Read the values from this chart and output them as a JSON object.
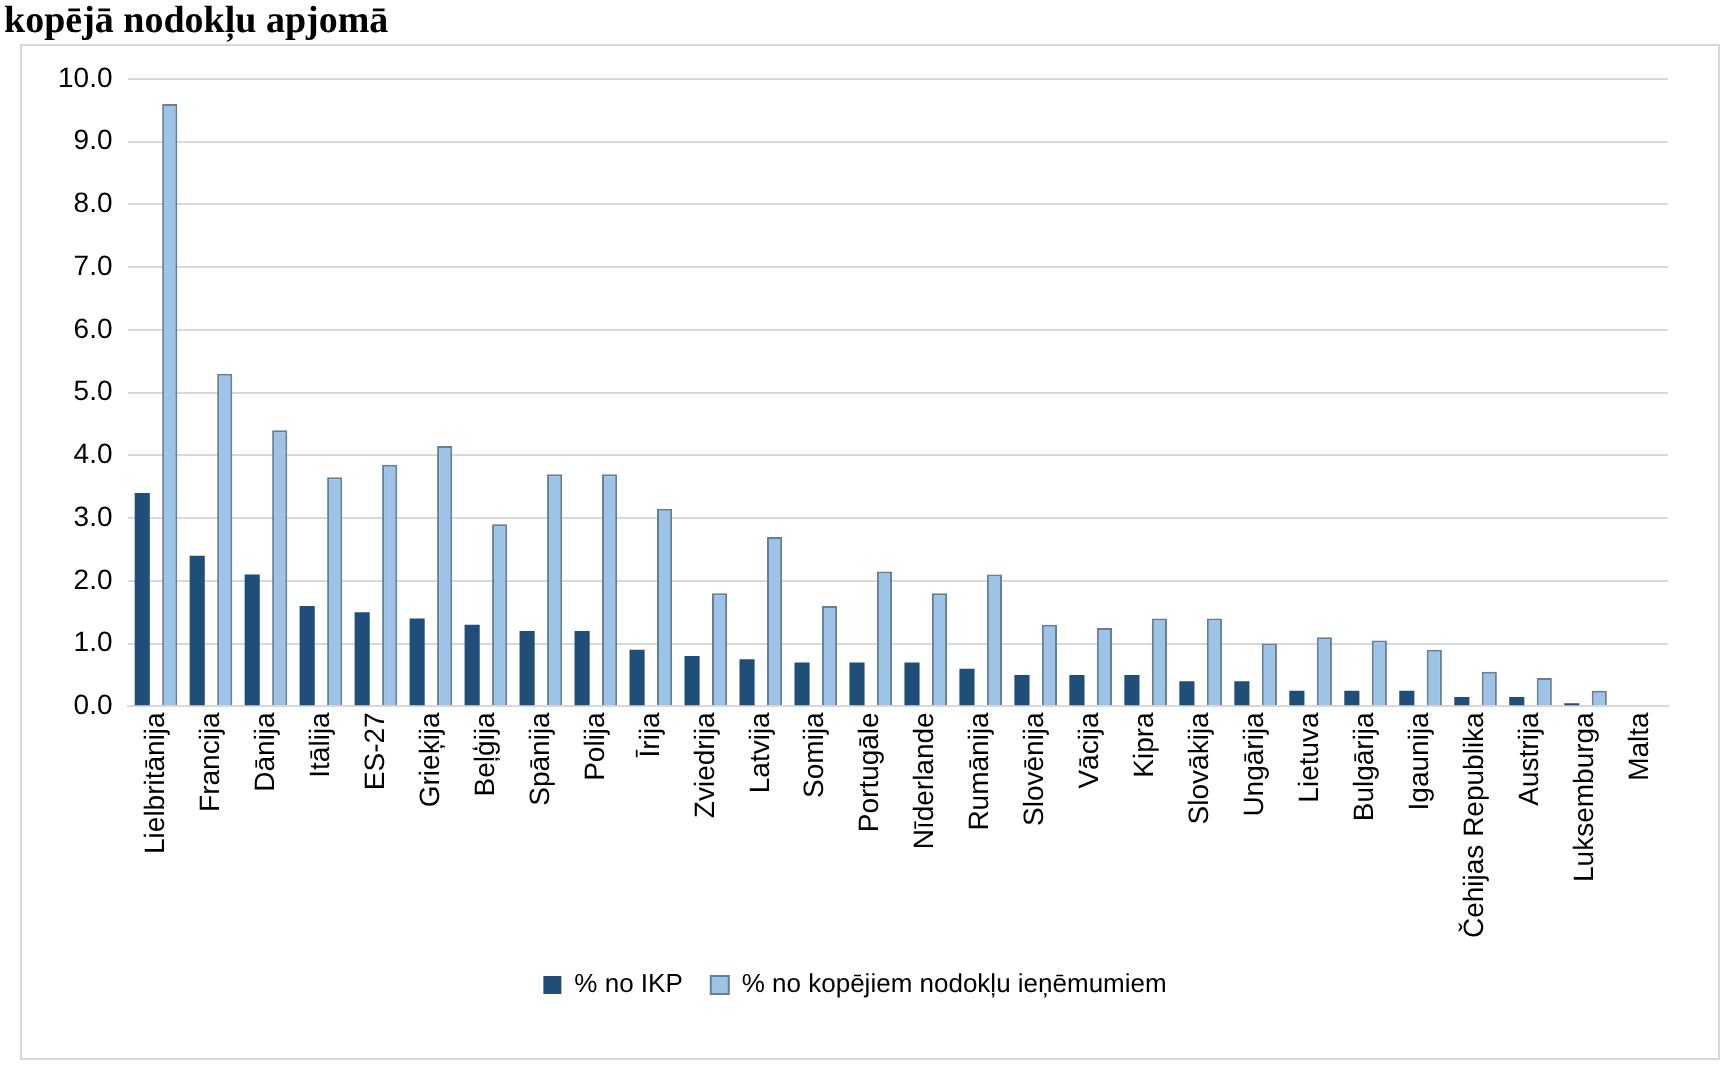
{
  "chart_data": {
    "type": "bar",
    "title": "kopējā nodokļu apjomā",
    "categories": [
      "Lielbritānija",
      "Francija",
      "Dānija",
      "Itālija",
      "ES-27",
      "Grieķija",
      "Beļģija",
      "Spānija",
      "Polija",
      "Īrija",
      "Zviedrija",
      "Latvija",
      "Somija",
      "Portugāle",
      "Nīderlande",
      "Rumānija",
      "Slovēnija",
      "Vācija",
      "Kipra",
      "Slovākija",
      "Ungārija",
      "Lietuva",
      "Bulgārija",
      "Igaunija",
      "Čehijas Republika",
      "Austrija",
      "Luksemburga",
      "Malta"
    ],
    "series": [
      {
        "name": "% no IKP",
        "color": "#1f4e79",
        "values": [
          3.4,
          2.4,
          2.1,
          1.6,
          1.5,
          1.4,
          1.3,
          1.2,
          1.2,
          0.9,
          0.8,
          0.75,
          0.7,
          0.7,
          0.7,
          0.6,
          0.5,
          0.5,
          0.5,
          0.4,
          0.4,
          0.25,
          0.25,
          0.25,
          0.15,
          0.15,
          0.05,
          0
        ]
      },
      {
        "name": "% no kopējiem nodokļu ieņēmumiem",
        "color": "#9dc3e6",
        "values": [
          9.6,
          5.3,
          4.4,
          3.65,
          3.85,
          4.15,
          2.9,
          3.7,
          3.7,
          3.15,
          1.8,
          2.7,
          1.6,
          2.15,
          1.8,
          2.1,
          1.3,
          1.25,
          1.4,
          1.4,
          1.0,
          1.1,
          1.05,
          0.9,
          0.55,
          0.45,
          0.25,
          0
        ]
      }
    ],
    "ylim": [
      0,
      10
    ],
    "yticks": [
      {
        "value": 0,
        "label": "0.0"
      },
      {
        "value": 1,
        "label": "1.0"
      },
      {
        "value": 2,
        "label": "2.0"
      },
      {
        "value": 3,
        "label": "3.0"
      },
      {
        "value": 4,
        "label": "4.0"
      },
      {
        "value": 5,
        "label": "5.0"
      },
      {
        "value": 6,
        "label": "6.0"
      },
      {
        "value": 7,
        "label": "7.0"
      },
      {
        "value": 8,
        "label": "8.0"
      },
      {
        "value": 9,
        "label": "9.0"
      },
      {
        "value": 10,
        "label": "10.0"
      }
    ],
    "grid": "y",
    "legend": "bottom"
  }
}
